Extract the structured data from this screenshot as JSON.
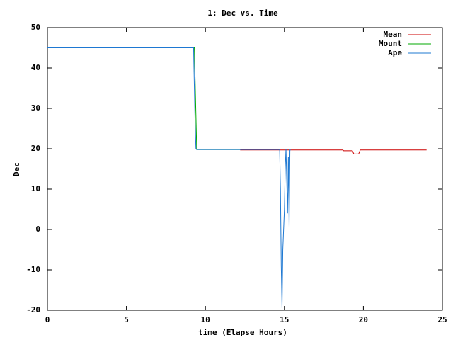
{
  "chart_data": {
    "type": "line",
    "title": "1: Dec vs. Time",
    "x_label": "time (Elapse Hours)",
    "y_label": "Dec",
    "xlim": [
      0,
      25
    ],
    "xticks": [
      0,
      5,
      10,
      15,
      20,
      25
    ],
    "ylim": [
      -20,
      50
    ],
    "yticks": [
      -20,
      -10,
      0,
      10,
      20,
      30,
      40,
      50
    ],
    "legend": "top-right",
    "series": [
      {
        "name": "Mean",
        "color": "#cc0000",
        "x": [
          12.2,
          18.7,
          18.75,
          19.3,
          19.4,
          19.7,
          19.8,
          24
        ],
        "values": [
          19.7,
          19.7,
          19.5,
          19.5,
          18.7,
          18.7,
          19.7,
          19.7
        ]
      },
      {
        "name": "Mount",
        "color": "#00aa00",
        "x": [
          0,
          9.3,
          9.45,
          12.2
        ],
        "values": [
          45,
          45,
          19.8,
          19.8
        ]
      },
      {
        "name": "Ape",
        "color": "#1e78d2",
        "x": [
          0,
          9.25,
          9.28,
          9.35,
          9.4,
          9.45,
          12.2,
          14.7,
          14.75,
          14.8,
          14.85,
          14.9,
          14.95,
          15.0,
          15.05,
          15.1,
          15.15,
          15.2,
          15.25,
          15.3,
          15.35,
          15.4
        ],
        "values": [
          45,
          45,
          39,
          26,
          20,
          19.8,
          19.8,
          19.8,
          10,
          -9,
          -19.5,
          -5,
          0,
          5,
          15,
          20,
          12,
          4,
          18,
          0.5,
          19.7,
          19.7
        ]
      }
    ]
  }
}
